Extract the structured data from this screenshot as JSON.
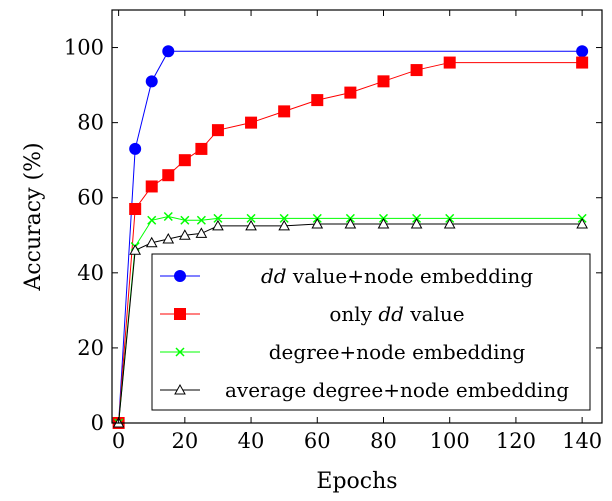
{
  "chart_data": {
    "type": "line",
    "title": "",
    "xlabel": "Epochs",
    "ylabel": "Accuracy (%)",
    "xlim": [
      -2,
      146
    ],
    "ylim": [
      0,
      110
    ],
    "xticks": [
      0,
      20,
      40,
      60,
      80,
      100,
      120,
      140
    ],
    "yticks": [
      0,
      20,
      40,
      60,
      80,
      100
    ],
    "grid": false,
    "legend_position": "bottom-right",
    "series": [
      {
        "name_parts": [
          {
            "text": "dd",
            "italic": true
          },
          {
            "text": " value+node embedding",
            "italic": false
          }
        ],
        "color": "#0000ff",
        "marker": "circle",
        "x": [
          0,
          5,
          10,
          15,
          140
        ],
        "y": [
          0,
          73,
          91,
          99,
          99
        ]
      },
      {
        "name_parts": [
          {
            "text": "only ",
            "italic": false
          },
          {
            "text": "dd",
            "italic": true
          },
          {
            "text": " value",
            "italic": false
          }
        ],
        "color": "#ff0000",
        "marker": "square",
        "x": [
          0,
          5,
          10,
          15,
          20,
          25,
          30,
          40,
          50,
          60,
          70,
          80,
          90,
          100,
          140
        ],
        "y": [
          0,
          57,
          63,
          66,
          70,
          73,
          78,
          80,
          83,
          86,
          88,
          91,
          94,
          96,
          96
        ]
      },
      {
        "name_parts": [
          {
            "text": "degree+node embedding",
            "italic": false
          }
        ],
        "color": "#00ff00",
        "marker": "cross",
        "x": [
          0,
          5,
          10,
          15,
          20,
          25,
          30,
          40,
          50,
          60,
          70,
          80,
          90,
          100,
          140
        ],
        "y": [
          0,
          47,
          54,
          55,
          54,
          54,
          54.5,
          54.5,
          54.5,
          54.5,
          54.5,
          54.5,
          54.5,
          54.5,
          54.5
        ]
      },
      {
        "name_parts": [
          {
            "text": "average degree+node embedding",
            "italic": false
          }
        ],
        "color": "#000000",
        "marker": "triangle",
        "x": [
          0,
          5,
          10,
          15,
          20,
          25,
          30,
          40,
          50,
          60,
          70,
          80,
          90,
          100,
          140
        ],
        "y": [
          0,
          46,
          48,
          49,
          50,
          50.5,
          52.5,
          52.5,
          52.5,
          53,
          53,
          53,
          53,
          53,
          53
        ]
      }
    ]
  }
}
